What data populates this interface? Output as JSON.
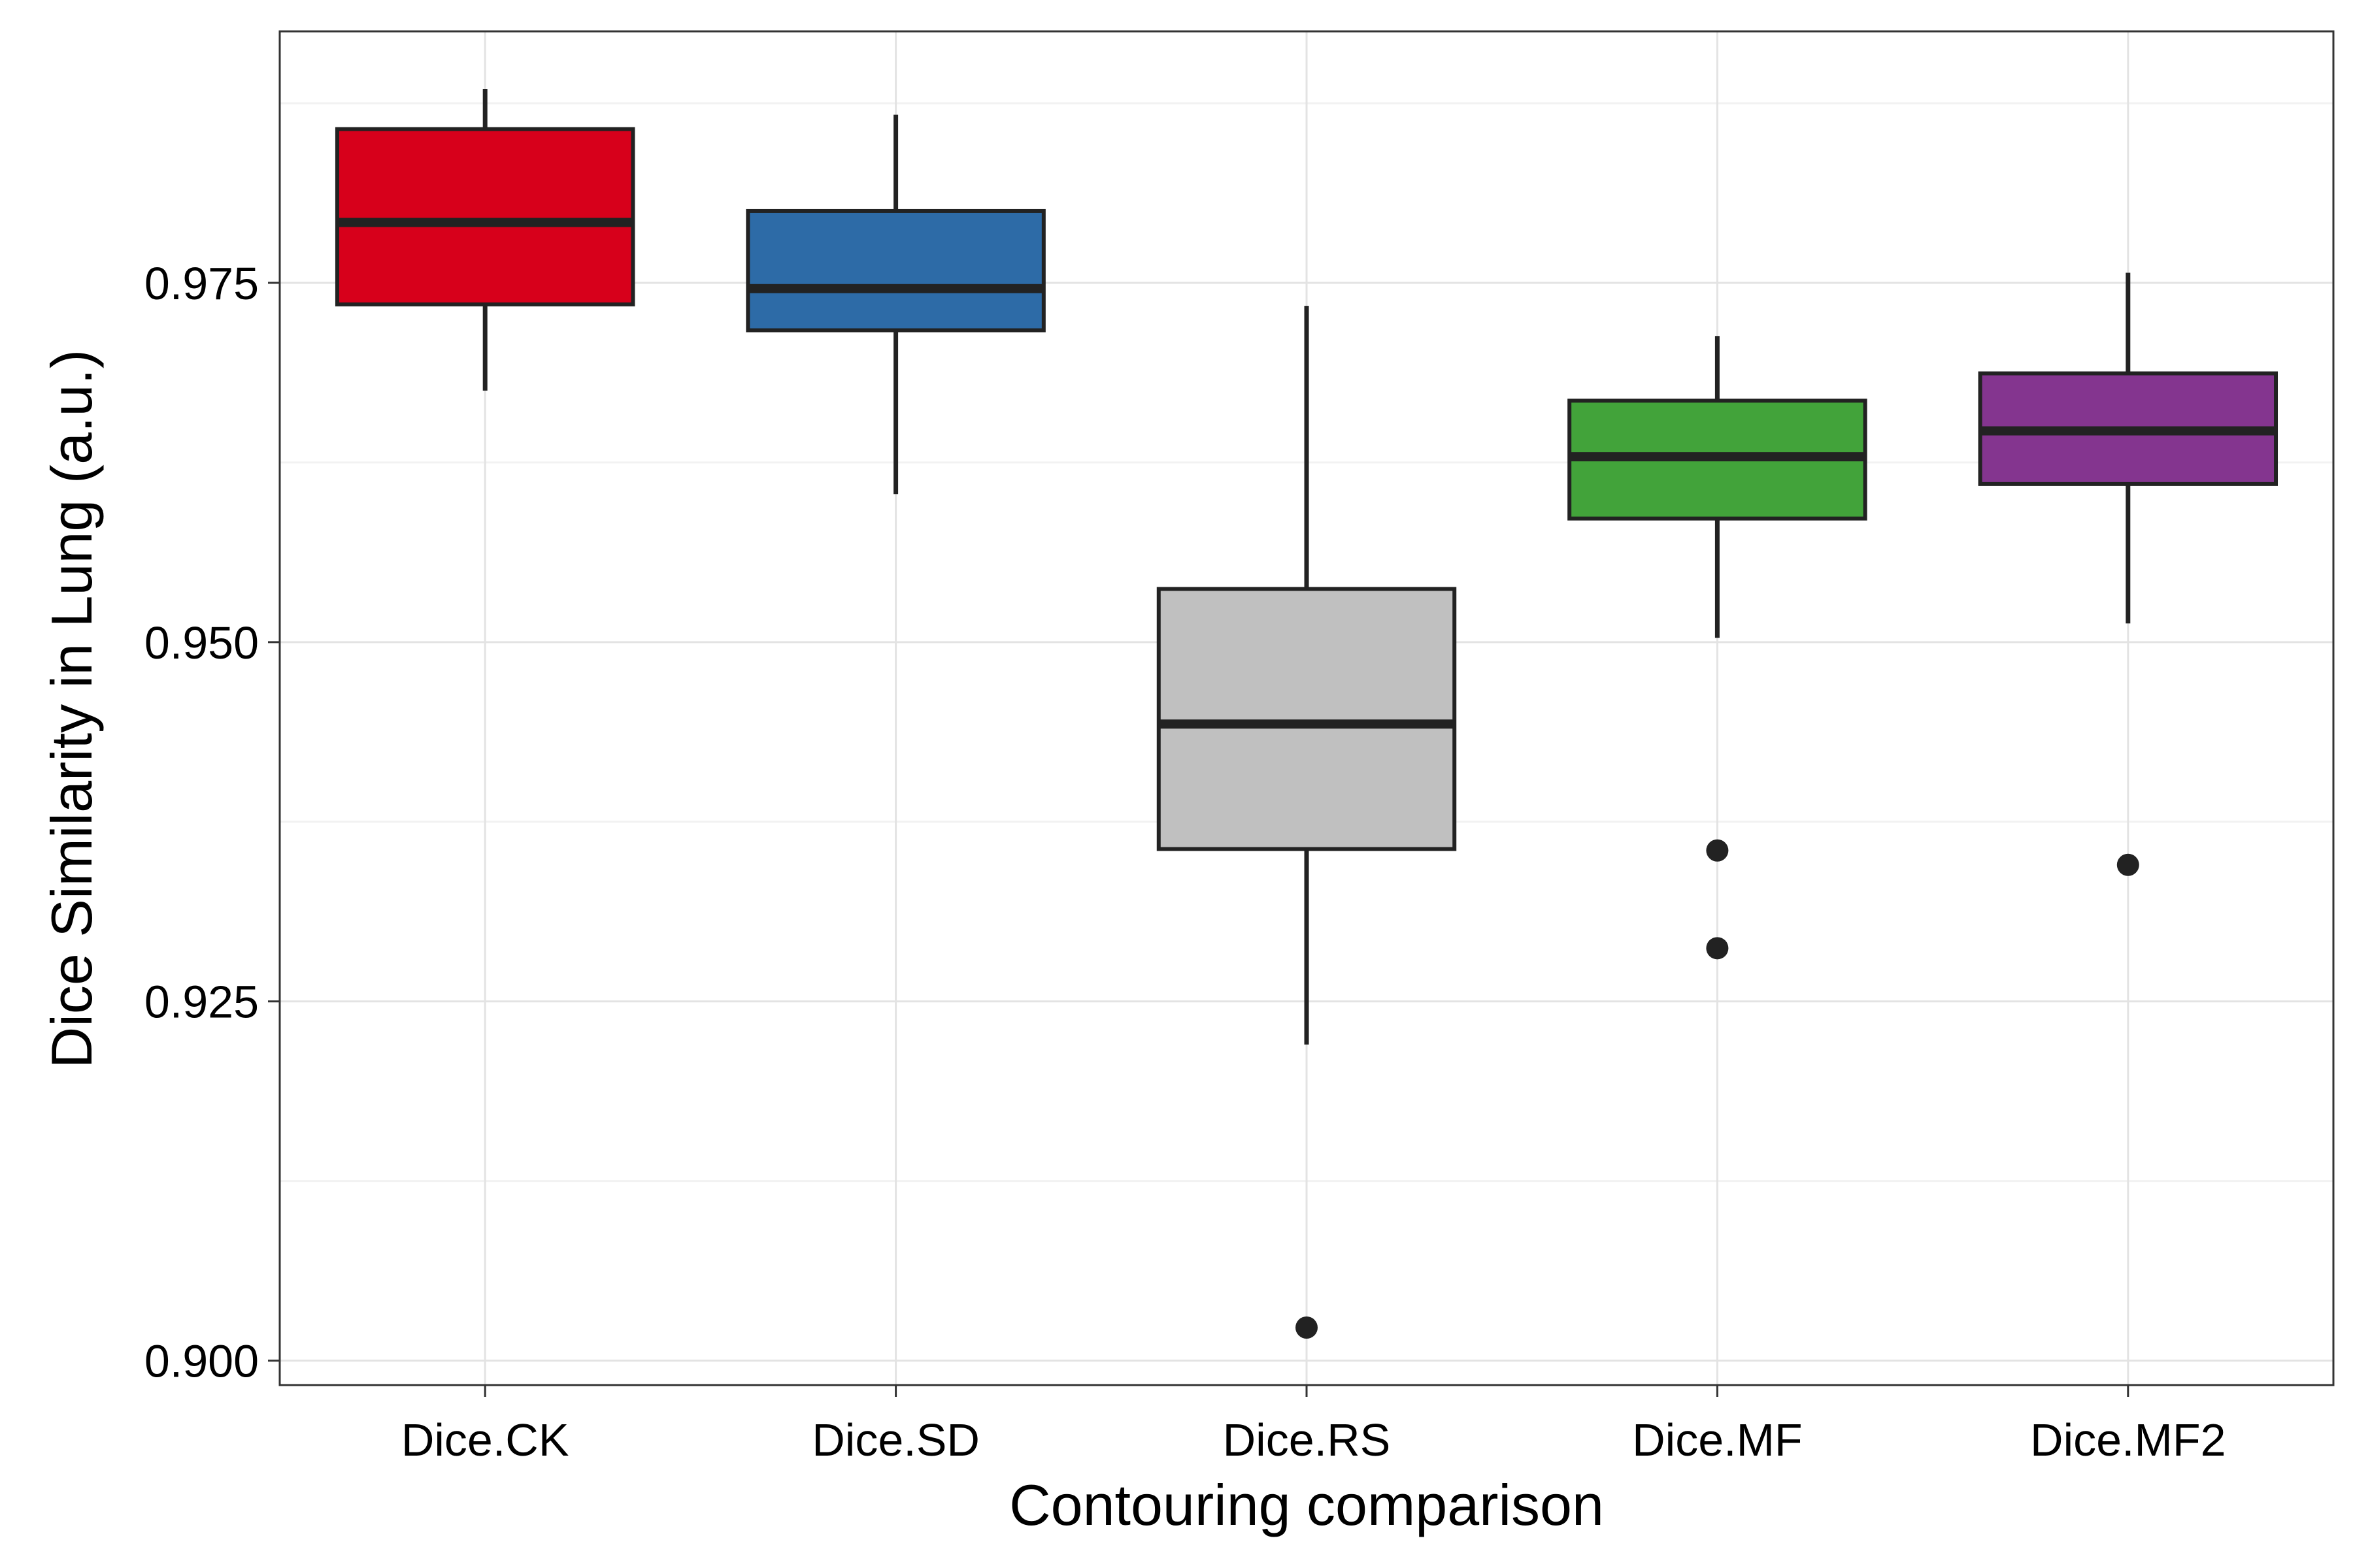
{
  "chart_data": {
    "type": "boxplot",
    "title": "",
    "xlabel": "Contouring comparison",
    "ylabel": "Dice Similarity in Lung (a.u.)",
    "ylim": [
      0.8983,
      0.9925
    ],
    "yticks": [
      0.9,
      0.925,
      0.95,
      0.975
    ],
    "ytick_labels": [
      "0.900",
      "0.925",
      "0.950",
      "0.975"
    ],
    "grid": true,
    "legend": "none",
    "categories": [
      "Dice.CK",
      "Dice.SD",
      "Dice.RS",
      "Dice.MF",
      "Dice.MF2"
    ],
    "boxes": [
      {
        "label": "Dice.CK",
        "whisker_low": 0.9675,
        "q1": 0.9735,
        "median": 0.9792,
        "q3": 0.9857,
        "whisker_high": 0.9885,
        "outliers": [],
        "color": "#d7001b"
      },
      {
        "label": "Dice.SD",
        "whisker_low": 0.9603,
        "q1": 0.9717,
        "median": 0.9746,
        "q3": 0.98,
        "whisker_high": 0.9867,
        "outliers": [],
        "color": "#2d6ba7"
      },
      {
        "label": "Dice.RS",
        "whisker_low": 0.922,
        "q1": 0.9356,
        "median": 0.9443,
        "q3": 0.9537,
        "whisker_high": 0.9734,
        "outliers": [
          0.9023
        ],
        "color": "#c0c0c0"
      },
      {
        "label": "Dice.MF",
        "whisker_low": 0.9503,
        "q1": 0.9586,
        "median": 0.9629,
        "q3": 0.9668,
        "whisker_high": 0.9713,
        "outliers": [
          0.9355,
          0.9287
        ],
        "color": "#42a33a"
      },
      {
        "label": "Dice.MF2",
        "whisker_low": 0.9513,
        "q1": 0.961,
        "median": 0.9647,
        "q3": 0.9687,
        "whisker_high": 0.9757,
        "outliers": [
          0.9345
        ],
        "color": "#84358f"
      }
    ]
  }
}
